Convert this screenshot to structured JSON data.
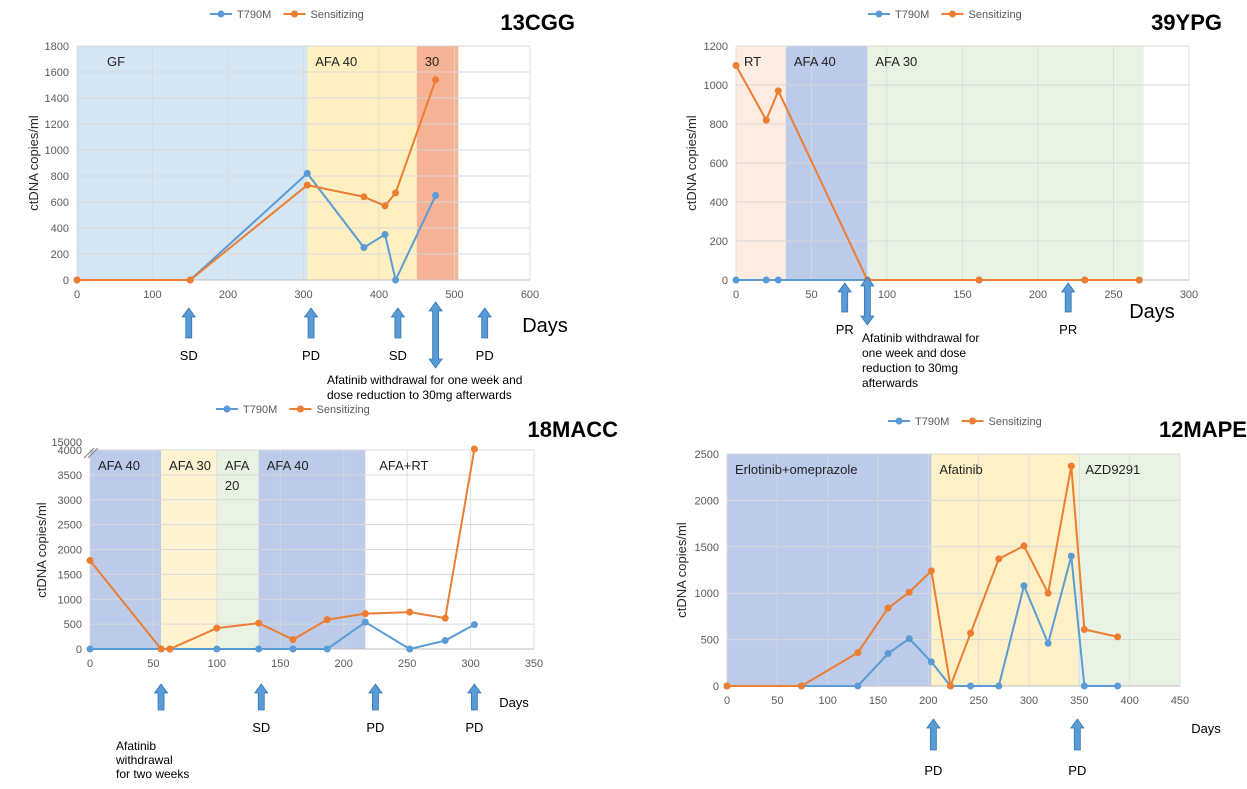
{
  "colors": {
    "t790m": "#5B9BD5",
    "sensitizing": "#ED7D31",
    "grid": "#D9D9D9",
    "arrow": "#5B9BD5"
  },
  "chart_data": [
    {
      "id": "13CGG",
      "type": "line",
      "title": "13CGG",
      "ylabel": "ctDNA copies/ml",
      "xlabel": "Days",
      "xlim": [
        0,
        600
      ],
      "ylim": [
        0,
        1800
      ],
      "xticks": [
        0,
        100,
        200,
        300,
        400,
        500,
        600
      ],
      "yticks": [
        0,
        200,
        400,
        600,
        800,
        1000,
        1200,
        1400,
        1600,
        1800
      ],
      "legend": [
        "T790M",
        "Sensitizing"
      ],
      "bands": [
        {
          "start": 0,
          "end": 305,
          "color": "#BDD7EE",
          "opacity": 0.65,
          "label": "GF"
        },
        {
          "start": 305,
          "end": 450,
          "color": "#FFE699",
          "opacity": 0.6,
          "label": "AFA 40"
        },
        {
          "start": 450,
          "end": 505,
          "color": "#F4A582",
          "opacity": 0.85,
          "label": "30"
        }
      ],
      "series": [
        {
          "name": "T790M",
          "x": [
            0,
            150,
            305,
            380,
            408,
            422,
            475
          ],
          "y": [
            0,
            0,
            820,
            250,
            350,
            0,
            650
          ]
        },
        {
          "name": "Sensitizing",
          "x": [
            0,
            150,
            305,
            380,
            408,
            422,
            475
          ],
          "y": [
            0,
            0,
            730,
            640,
            570,
            670,
            1540
          ]
        }
      ],
      "annotations": [
        {
          "x": 148,
          "dir": "up",
          "label": [
            "SD"
          ]
        },
        {
          "x": 310,
          "dir": "up",
          "label": [
            "PD"
          ]
        },
        {
          "x": 425,
          "dir": "up",
          "label": [
            "SD"
          ]
        },
        {
          "x": 475,
          "dir": "both",
          "label": []
        },
        {
          "x": 540,
          "dir": "up",
          "label": [
            "PD"
          ]
        }
      ],
      "note": [
        "Afatinib  withdrawal  for one week and",
        "dose reduction to 30mg afterwards"
      ]
    },
    {
      "id": "39YPG",
      "type": "line",
      "title": "39YPG",
      "ylabel": "ctDNA copies/ml",
      "xlabel": "Days",
      "xlim": [
        0,
        300
      ],
      "ylim": [
        0,
        1200
      ],
      "xticks": [
        0,
        50,
        100,
        150,
        200,
        250,
        300
      ],
      "yticks": [
        0,
        200,
        400,
        600,
        800,
        1000,
        1200
      ],
      "legend": [
        "T790M",
        "Sensitizing"
      ],
      "bands": [
        {
          "start": 0,
          "end": 33,
          "color": "#FCE4D6",
          "opacity": 0.7,
          "label": "RT"
        },
        {
          "start": 33,
          "end": 87,
          "color": "#8EA9DB",
          "opacity": 0.6,
          "label": "AFA 40"
        },
        {
          "start": 87,
          "end": 270,
          "color": "#E2EFDA",
          "opacity": 0.75,
          "label": "AFA 30"
        }
      ],
      "series": [
        {
          "name": "T790M",
          "x": [
            0,
            20,
            28,
            87,
            161,
            231,
            267
          ],
          "y": [
            0,
            0,
            0,
            0,
            0,
            0,
            0
          ]
        },
        {
          "name": "Sensitizing",
          "x": [
            0,
            20,
            28,
            87,
            161,
            231,
            267
          ],
          "y": [
            1100,
            820,
            970,
            0,
            0,
            0,
            0
          ]
        }
      ],
      "annotations": [
        {
          "x": 72,
          "dir": "up",
          "label": [
            "PR"
          ]
        },
        {
          "x": 87,
          "dir": "both",
          "label": []
        },
        {
          "x": 220,
          "dir": "up",
          "label": [
            "PR"
          ]
        }
      ],
      "note": [
        "Afatinib    withdrawal    for",
        "one   week   and   dose",
        "reduction     to     30mg",
        "afterwards"
      ]
    },
    {
      "id": "18MACC",
      "type": "line",
      "title": "18MACC",
      "ylabel": "ctDNA copies/ml",
      "xlabel": "Days",
      "xlim": [
        0,
        350
      ],
      "ylim": [
        0,
        4000
      ],
      "y_break_label": "15000",
      "xticks": [
        0,
        50,
        100,
        150,
        200,
        250,
        300,
        350
      ],
      "yticks": [
        0,
        500,
        1000,
        1500,
        2000,
        2500,
        3000,
        3500,
        4000
      ],
      "legend": [
        "T790M",
        "Sensitizing"
      ],
      "bands": [
        {
          "start": 0,
          "end": 56,
          "color": "#8EA9DB",
          "opacity": 0.6,
          "label": "AFA 40"
        },
        {
          "start": 56,
          "end": 100,
          "color": "#FFF2CC",
          "opacity": 0.9,
          "label": "AFA 30"
        },
        {
          "start": 100,
          "end": 133,
          "color": "#E2EFDA",
          "opacity": 0.75,
          "label": "AFA\n20"
        },
        {
          "start": 133,
          "end": 217,
          "color": "#8EA9DB",
          "opacity": 0.6,
          "label": "AFA 40"
        }
      ],
      "free_labels": [
        {
          "x": 228,
          "label": "AFA+RT"
        }
      ],
      "series": [
        {
          "name": "T790M",
          "x": [
            0,
            56,
            63,
            100,
            133,
            160,
            187,
            217,
            252,
            280,
            303
          ],
          "y": [
            0,
            0,
            0,
            0,
            0,
            0,
            0,
            540,
            0,
            170,
            490
          ]
        },
        {
          "name": "Sensitizing",
          "x": [
            0,
            56,
            63,
            100,
            133,
            160,
            187,
            217,
            252,
            280,
            303
          ],
          "y": [
            1780,
            0,
            0,
            420,
            520,
            190,
            590,
            710,
            740,
            620,
            4020
          ]
        }
      ],
      "annotations": [
        {
          "x": 56,
          "dir": "up",
          "label": []
        },
        {
          "x": 135,
          "dir": "up",
          "label": [
            "SD"
          ]
        },
        {
          "x": 225,
          "dir": "up",
          "label": [
            "PD"
          ]
        },
        {
          "x": 303,
          "dir": "up",
          "label": [
            "PD"
          ]
        }
      ],
      "note": [
        "Afatinib",
        "withdrawal",
        "for two weeks"
      ]
    },
    {
      "id": "12MAPE",
      "type": "line",
      "title": "12MAPE",
      "ylabel": "ctDNA copies/ml",
      "xlabel": "Days",
      "xlim": [
        0,
        450
      ],
      "ylim": [
        0,
        2500
      ],
      "xticks": [
        0,
        50,
        100,
        150,
        200,
        250,
        300,
        350,
        400,
        450
      ],
      "yticks": [
        0,
        500,
        1000,
        1500,
        2000,
        2500
      ],
      "legend": [
        "T790M",
        "Sensitizing"
      ],
      "bands": [
        {
          "start": 0,
          "end": 203,
          "color": "#8EA9DB",
          "opacity": 0.6,
          "label": "Erlotinib+omeprazole"
        },
        {
          "start": 203,
          "end": 348,
          "color": "#FFE699",
          "opacity": 0.55,
          "label": "Afatinib"
        },
        {
          "start": 348,
          "end": 450,
          "color": "#E2EFDA",
          "opacity": 0.75,
          "label": "AZD9291"
        }
      ],
      "series": [
        {
          "name": "T790M",
          "x": [
            0,
            74,
            130,
            160,
            181,
            203,
            222,
            242,
            270,
            295,
            319,
            342,
            355,
            388
          ],
          "y": [
            0,
            0,
            0,
            350,
            510,
            260,
            0,
            0,
            0,
            1080,
            460,
            1400,
            0,
            0
          ]
        },
        {
          "name": "Sensitizing",
          "x": [
            0,
            74,
            130,
            160,
            181,
            203,
            222,
            242,
            270,
            295,
            319,
            342,
            355,
            388
          ],
          "y": [
            0,
            0,
            360,
            840,
            1010,
            1240,
            0,
            570,
            1370,
            1510,
            1000,
            2370,
            610,
            530
          ]
        }
      ],
      "annotations": [
        {
          "x": 205,
          "dir": "up",
          "label": [
            "PD"
          ]
        },
        {
          "x": 348,
          "dir": "up",
          "label": [
            "PD"
          ]
        }
      ],
      "note": []
    }
  ]
}
